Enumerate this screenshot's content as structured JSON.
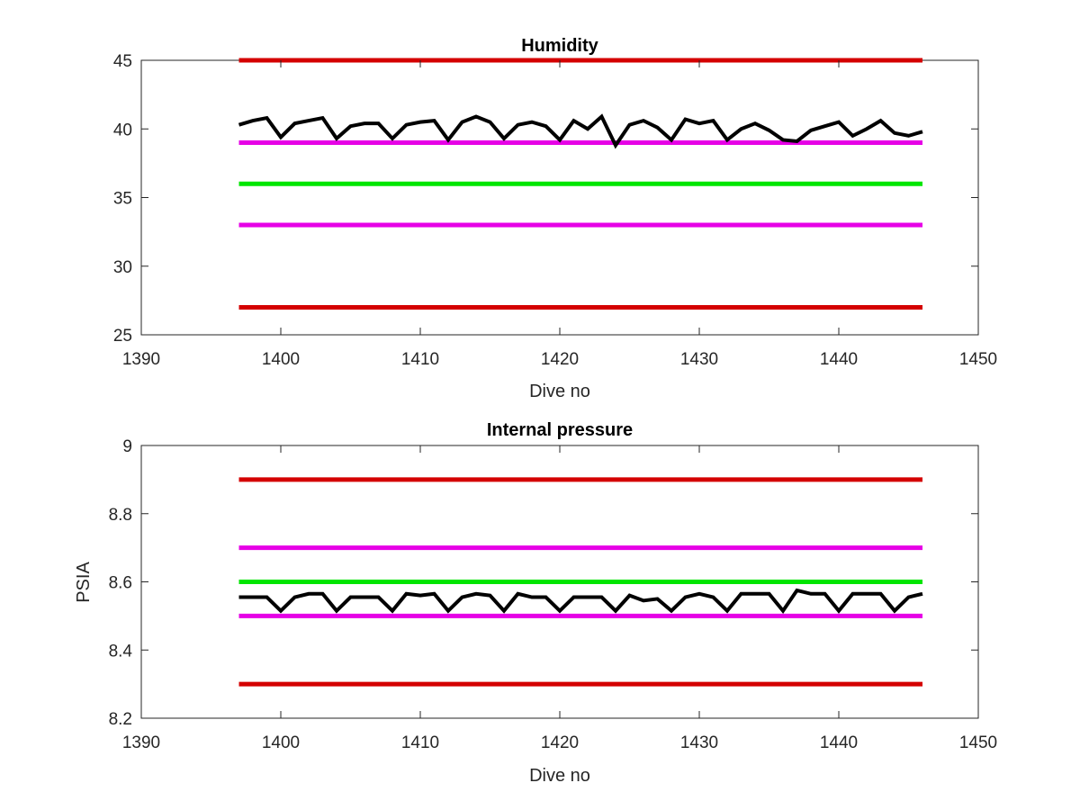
{
  "chart_data": [
    {
      "type": "line",
      "title": "Humidity",
      "xlabel": "Dive no",
      "ylabel": "",
      "xlim": [
        1390,
        1450
      ],
      "ylim": [
        25,
        45
      ],
      "x_ticks": [
        "1390",
        "1400",
        "1410",
        "1420",
        "1430",
        "1440",
        "1450"
      ],
      "y_ticks": [
        "25",
        "30",
        "35",
        "40",
        "45"
      ],
      "grid": false,
      "thresholds": [
        {
          "y": 45,
          "x": [
            1397,
            1446
          ],
          "color": "#d40000"
        },
        {
          "y": 39,
          "x": [
            1397,
            1446
          ],
          "color": "#e600e6"
        },
        {
          "y": 36,
          "x": [
            1397,
            1446
          ],
          "color": "#00e600"
        },
        {
          "y": 33,
          "x": [
            1397,
            1446
          ],
          "color": "#e600e6"
        },
        {
          "y": 27,
          "x": [
            1397,
            1446
          ],
          "color": "#d40000"
        }
      ],
      "series": [
        {
          "color": "#000000",
          "x": [
            1397,
            1398,
            1399,
            1400,
            1401,
            1402,
            1403,
            1404,
            1405,
            1406,
            1407,
            1408,
            1409,
            1410,
            1411,
            1412,
            1413,
            1414,
            1415,
            1416,
            1417,
            1418,
            1419,
            1420,
            1421,
            1422,
            1423,
            1424,
            1425,
            1426,
            1427,
            1428,
            1429,
            1430,
            1431,
            1432,
            1433,
            1434,
            1435,
            1436,
            1437,
            1438,
            1439,
            1440,
            1441,
            1442,
            1443,
            1444,
            1445,
            1446
          ],
          "y": [
            40.3,
            40.6,
            40.8,
            39.4,
            40.4,
            40.6,
            40.8,
            39.3,
            40.2,
            40.4,
            40.4,
            39.3,
            40.3,
            40.5,
            40.6,
            39.2,
            40.5,
            40.9,
            40.5,
            39.3,
            40.3,
            40.5,
            40.2,
            39.2,
            40.6,
            40.0,
            40.9,
            38.8,
            40.3,
            40.6,
            40.1,
            39.2,
            40.7,
            40.4,
            40.6,
            39.2,
            40.0,
            40.4,
            39.9,
            39.2,
            39.1,
            39.9,
            40.2,
            40.5,
            39.5,
            40.0,
            40.6,
            39.7,
            39.5,
            39.8
          ]
        }
      ]
    },
    {
      "type": "line",
      "title": "Internal pressure",
      "xlabel": "Dive no",
      "ylabel": "PSIA",
      "xlim": [
        1390,
        1450
      ],
      "ylim": [
        8.2,
        9.0
      ],
      "x_ticks": [
        "1390",
        "1400",
        "1410",
        "1420",
        "1430",
        "1440",
        "1450"
      ],
      "y_ticks": [
        "8.2",
        "8.4",
        "8.6",
        "8.8",
        "9"
      ],
      "grid": false,
      "thresholds": [
        {
          "y": 8.9,
          "x": [
            1397,
            1446
          ],
          "color": "#d40000"
        },
        {
          "y": 8.7,
          "x": [
            1397,
            1446
          ],
          "color": "#e600e6"
        },
        {
          "y": 8.6,
          "x": [
            1397,
            1446
          ],
          "color": "#00e600"
        },
        {
          "y": 8.5,
          "x": [
            1397,
            1446
          ],
          "color": "#e600e6"
        },
        {
          "y": 8.3,
          "x": [
            1397,
            1446
          ],
          "color": "#d40000"
        }
      ],
      "series": [
        {
          "color": "#000000",
          "x": [
            1397,
            1398,
            1399,
            1400,
            1401,
            1402,
            1403,
            1404,
            1405,
            1406,
            1407,
            1408,
            1409,
            1410,
            1411,
            1412,
            1413,
            1414,
            1415,
            1416,
            1417,
            1418,
            1419,
            1420,
            1421,
            1422,
            1423,
            1424,
            1425,
            1426,
            1427,
            1428,
            1429,
            1430,
            1431,
            1432,
            1433,
            1434,
            1435,
            1436,
            1437,
            1438,
            1439,
            1440,
            1441,
            1442,
            1443,
            1444,
            1445,
            1446
          ],
          "y": [
            8.555,
            8.555,
            8.555,
            8.515,
            8.555,
            8.565,
            8.565,
            8.515,
            8.555,
            8.555,
            8.555,
            8.515,
            8.565,
            8.56,
            8.565,
            8.515,
            8.555,
            8.565,
            8.56,
            8.515,
            8.565,
            8.555,
            8.555,
            8.515,
            8.555,
            8.555,
            8.555,
            8.515,
            8.56,
            8.545,
            8.55,
            8.515,
            8.555,
            8.565,
            8.555,
            8.515,
            8.565,
            8.565,
            8.565,
            8.515,
            8.575,
            8.565,
            8.565,
            8.515,
            8.565,
            8.565,
            8.565,
            8.515,
            8.555,
            8.565
          ]
        }
      ]
    }
  ]
}
